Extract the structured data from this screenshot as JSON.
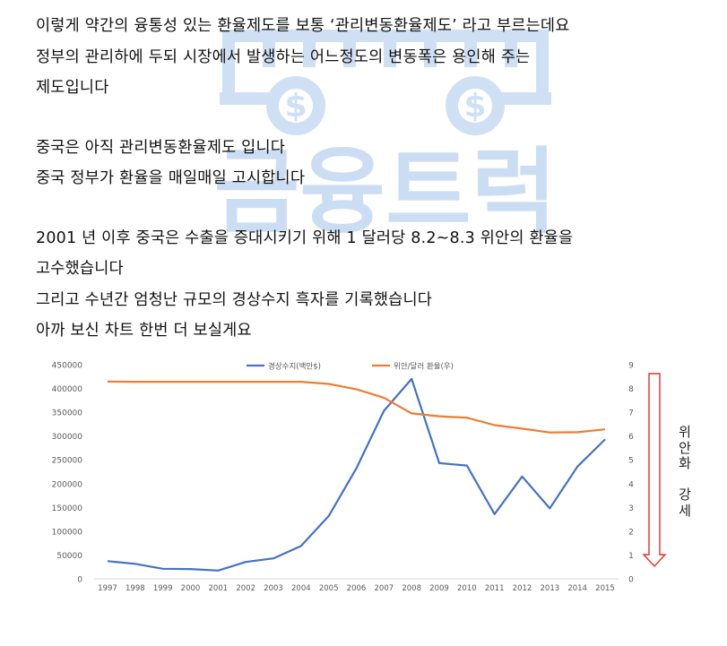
{
  "watermark": {
    "text": "금융트럭",
    "color": "#aac8ec"
  },
  "body_text": {
    "p1": [
      "이렇게 약간의 융통성 있는 환율제도를 보통 ‘관리변동환율제도’ 라고 부르는데요",
      "정부의 관리하에 두되 시장에서 발생하는 어느정도의 변동폭은 용인해 주는",
      "제도입니다"
    ],
    "p2": [
      "중국은 아직 관리변동환율제도 입니다",
      "중국 정부가 환율을 매일매일 고시합니다"
    ],
    "p3": [
      "2001 년 이후 중국은 수출을 증대시키기 위해 1 달러당 8.2~8.3 위안의 환율을",
      "고수했습니다",
      "그리고 수년간 엄청난 규모의 경상수지 흑자를 기록했습니다",
      "아까 보신 차트 한번 더 보실게요"
    ]
  },
  "chart_data": {
    "type": "line",
    "categories": [
      "1997",
      "1998",
      "1999",
      "2000",
      "2001",
      "2002",
      "2003",
      "2004",
      "2005",
      "2006",
      "2007",
      "2008",
      "2009",
      "2010",
      "2011",
      "2012",
      "2013",
      "2014",
      "2015"
    ],
    "series": [
      {
        "name": "경상수지(백만$)",
        "axis": "left",
        "color": "#4472c4",
        "values": [
          37000,
          31500,
          21000,
          20500,
          17400,
          35400,
          43000,
          69000,
          132000,
          232000,
          353000,
          420000,
          243000,
          238000,
          136000,
          215000,
          148000,
          236000,
          293000
        ]
      },
      {
        "name": "위안/달러 환율(우)",
        "axis": "right",
        "color": "#ed7d31",
        "values": [
          8.29,
          8.28,
          8.28,
          8.28,
          8.28,
          8.28,
          8.28,
          8.28,
          8.19,
          7.97,
          7.61,
          6.95,
          6.83,
          6.77,
          6.46,
          6.31,
          6.15,
          6.16,
          6.28
        ]
      }
    ],
    "y_left": {
      "min": 0,
      "max": 450000,
      "ticks": [
        0,
        50000,
        100000,
        150000,
        200000,
        250000,
        300000,
        350000,
        400000,
        450000
      ]
    },
    "y_right": {
      "min": 0,
      "max": 9,
      "ticks": [
        0,
        1,
        2,
        3,
        4,
        5,
        6,
        7,
        8,
        9
      ]
    },
    "legend_position": "top",
    "grid": false,
    "annotation": {
      "text_chars": [
        "위",
        "안",
        "화",
        "",
        "강",
        "세"
      ],
      "arrow_color": "#e0302b",
      "direction": "down"
    }
  }
}
